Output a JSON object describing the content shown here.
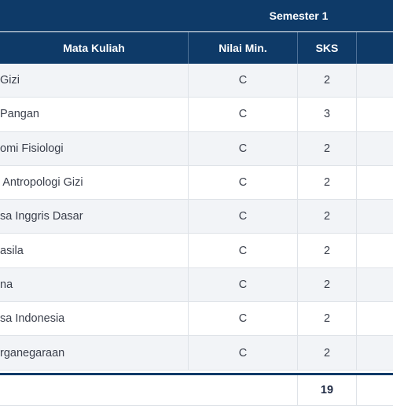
{
  "semester": {
    "title": "Semester 1"
  },
  "header": {
    "course": "Mata Kuliah",
    "min_grade": "Nilai Min.",
    "credits": "SKS"
  },
  "rows": [
    {
      "course": "Gizi",
      "min_grade": "C",
      "credits": "2"
    },
    {
      "course": "Pangan",
      "min_grade": "C",
      "credits": "3"
    },
    {
      "course": "omi Fisiologi",
      "min_grade": "C",
      "credits": "2"
    },
    {
      "course": " Antropologi Gizi",
      "min_grade": "C",
      "credits": "2"
    },
    {
      "course": "sa Inggris Dasar",
      "min_grade": "C",
      "credits": "2"
    },
    {
      "course": "asila",
      "min_grade": "C",
      "credits": "2"
    },
    {
      "course": "na",
      "min_grade": "C",
      "credits": "2"
    },
    {
      "course": "sa Indonesia",
      "min_grade": "C",
      "credits": "2"
    },
    {
      "course": "rganegaraan",
      "min_grade": "C",
      "credits": "2"
    }
  ],
  "total": {
    "credits": "19"
  }
}
